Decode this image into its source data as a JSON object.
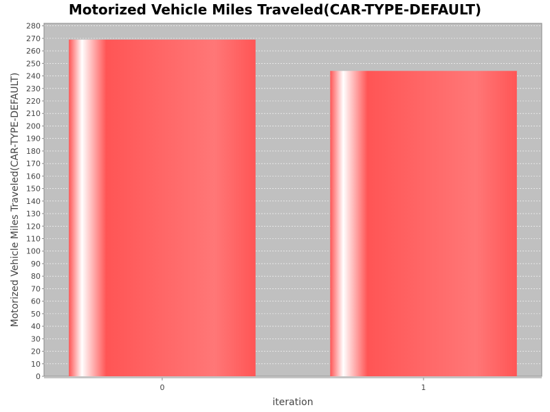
{
  "chart_data": {
    "type": "bar",
    "title": "Motorized Vehicle Miles Traveled(CAR-TYPE-DEFAULT)",
    "xlabel": "iteration",
    "ylabel": "Motorized Vehicle Miles Traveled(CAR-TYPE-DEFAULT)",
    "categories": [
      "0",
      "1"
    ],
    "values": [
      269,
      244
    ],
    "ylim": [
      0,
      282
    ],
    "yticks": [
      0,
      10,
      20,
      30,
      40,
      50,
      60,
      70,
      80,
      90,
      100,
      110,
      120,
      130,
      140,
      150,
      160,
      170,
      180,
      190,
      200,
      210,
      220,
      230,
      240,
      250,
      260,
      270,
      280
    ],
    "grid": true,
    "legend": "none",
    "colors": {
      "bar": "#ff5555",
      "plot_background": "#c0c0c0",
      "gridline": "#ffffff"
    }
  }
}
